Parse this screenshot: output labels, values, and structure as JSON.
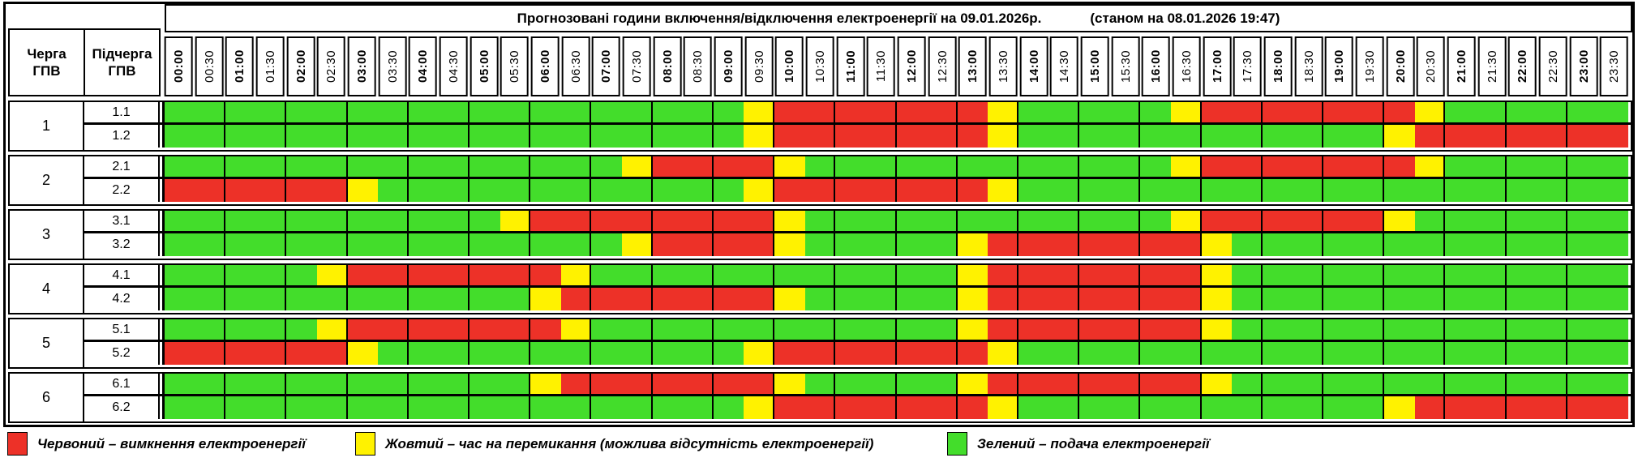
{
  "title": {
    "main": "Прогнозовані години включення/відключення електроенергії на 09.01.2026р.",
    "status": "(станом на 08.01.2026 19:47)"
  },
  "columns": {
    "queue": "Черга ГПВ",
    "subqueue": "Підчерга ГПВ"
  },
  "legend": [
    {
      "color": "R",
      "label": "Червоний – вимкнення електроенергії"
    },
    {
      "color": "Y",
      "label": "Жовтий – час на перемикання (можлива відсутність електроенергії)"
    },
    {
      "color": "G",
      "label": "Зелений – подача електроенергії"
    }
  ],
  "chart_data": {
    "type": "heatmap",
    "title": "Прогнозовані години включення/відключення електроенергії на 09.01.2026р.",
    "status_note": "(станом на 08.01.2026 19:47)",
    "legend_position": "bottom",
    "times": [
      "00:00",
      "00:30",
      "01:00",
      "01:30",
      "02:00",
      "02:30",
      "03:00",
      "03:30",
      "04:00",
      "04:30",
      "05:00",
      "05:30",
      "06:00",
      "06:30",
      "07:00",
      "07:30",
      "08:00",
      "08:30",
      "09:00",
      "09:30",
      "10:00",
      "10:30",
      "11:00",
      "11:30",
      "12:00",
      "12:30",
      "13:00",
      "13:30",
      "14:00",
      "14:30",
      "15:00",
      "15:30",
      "16:00",
      "16:30",
      "17:00",
      "17:30",
      "18:00",
      "18:30",
      "19:00",
      "19:30",
      "20:00",
      "20:30",
      "21:00",
      "21:30",
      "22:00",
      "22:30",
      "23:00",
      "23:30"
    ],
    "colors": {
      "G": "#43DD2B",
      "Y": "#FFF200",
      "R": "#ED3128"
    },
    "groups": [
      {
        "queue": "1",
        "rows": [
          {
            "label": "1.1",
            "slots": "GGGGGGGGGGGGGGGGGGGYRRRRRRRYGGGGGYRRRRRRRYGGGGGG"
          },
          {
            "label": "1.2",
            "slots": "GGGGGGGGGGGGGGGGGGGYRRRRRRRYGGGGGGGGGGGGYRRRRRRR"
          }
        ]
      },
      {
        "queue": "2",
        "rows": [
          {
            "label": "2.1",
            "slots": "GGGGGGGGGGGGGGGYRRRRYGGGGGGGGGGGGYRRRRRRRYGGGGGG"
          },
          {
            "label": "2.2",
            "slots": "RRRRRRYGGGGGGGGGGGGYRRRRRRRYGGGGGGGGGGGGGGGGGGGG"
          }
        ]
      },
      {
        "queue": "3",
        "rows": [
          {
            "label": "3.1",
            "slots": "GGGGGGGGGGGYRRRRRRRRYGGGGGGGGGGGGYRRRRRRYGGGGGGG"
          },
          {
            "label": "3.2",
            "slots": "GGGGGGGGGGGGGGGYRRRRYGGGGGYRRRRRRRYGGGGGGGGGGGGG"
          }
        ]
      },
      {
        "queue": "4",
        "rows": [
          {
            "label": "4.1",
            "slots": "GGGGGYRRRRRRRYGGGGGGGGGGGGYRRRRRRRYGGGGGGGGGGGGG"
          },
          {
            "label": "4.2",
            "slots": "GGGGGGGGGGGGYRRRRRRRYGGGGGYRRRRRRRYGGGGGGGGGGGGG"
          }
        ]
      },
      {
        "queue": "5",
        "rows": [
          {
            "label": "5.1",
            "slots": "GGGGGYRRRRRRRYGGGGGGGGGGGGYRRRRRRRYGGGGGGGGGGGGG"
          },
          {
            "label": "5.2",
            "slots": "RRRRRRYGGGGGGGGGGGGYRRRRRRRYGGGGGGGGGGGGGGGGGGGG"
          }
        ]
      },
      {
        "queue": "6",
        "rows": [
          {
            "label": "6.1",
            "slots": "GGGGGGGGGGGGYRRRRRRRYGGGGGYRRRRRRRYGGGGGGGGGGGGG"
          },
          {
            "label": "6.2",
            "slots": "GGGGGGGGGGGGGGGGGGGYRRRRRRRYGGGGGGGGGGGGYRRRRRRR"
          }
        ]
      }
    ]
  }
}
